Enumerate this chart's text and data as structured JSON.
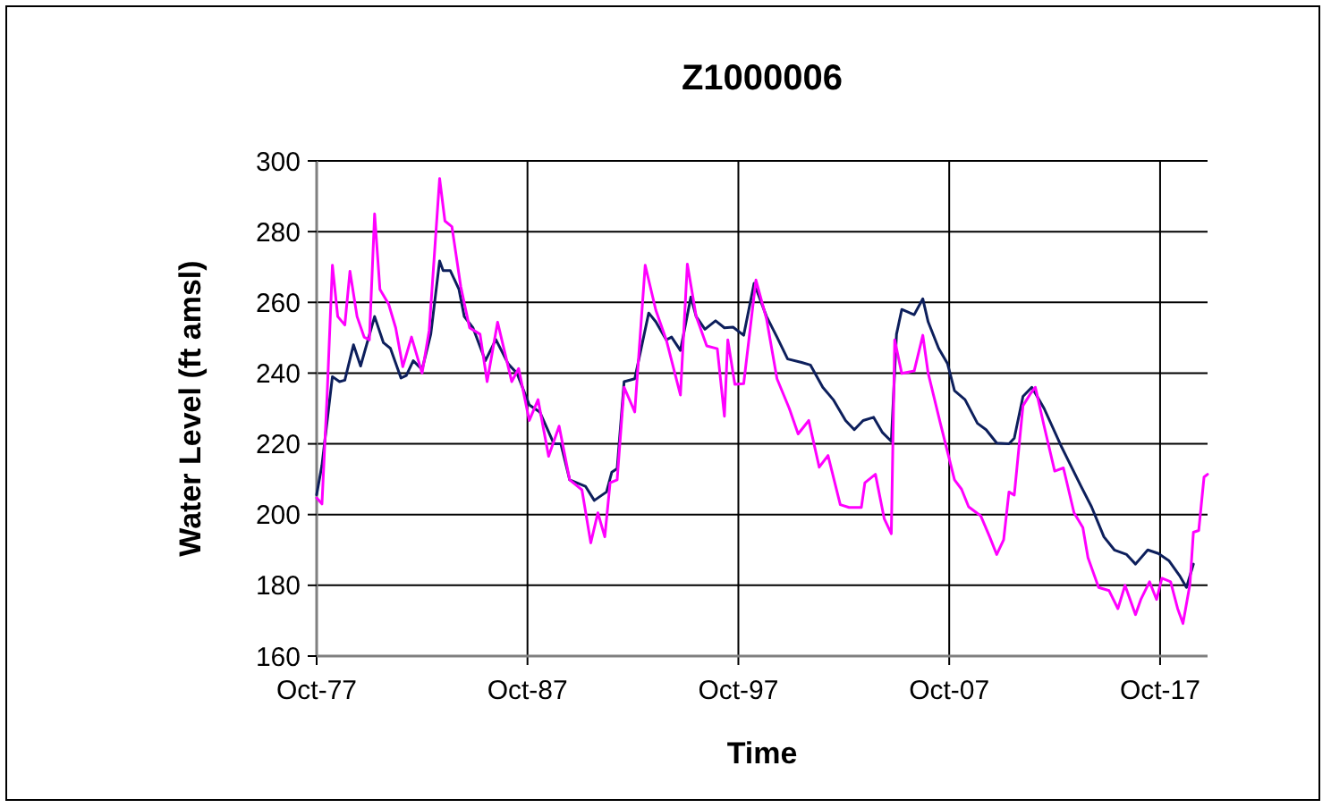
{
  "chart_data": {
    "type": "line",
    "title": "Z1000006",
    "xlabel": "Time",
    "ylabel": "Water Level (ft amsl)",
    "xlim": [
      "1977-10",
      "2020-01"
    ],
    "xticks": [
      {
        "value": "1977-10",
        "label": "Oct-77"
      },
      {
        "value": "1987-10",
        "label": "Oct-87"
      },
      {
        "value": "1997-10",
        "label": "Oct-97"
      },
      {
        "value": "2007-10",
        "label": "Oct-07"
      },
      {
        "value": "2017-10",
        "label": "Oct-17"
      }
    ],
    "ylim": [
      160,
      300
    ],
    "yticks": [
      160,
      180,
      200,
      220,
      240,
      260,
      280,
      300
    ],
    "grid": true,
    "marker": "none",
    "line_style": "solid",
    "series": [
      {
        "color": "#0d1f5c",
        "x": [
          "1977-10",
          "1978-01",
          "1978-07",
          "1978-11",
          "1979-02",
          "1979-07",
          "1979-11",
          "1980-07",
          "1980-12",
          "1981-04",
          "1981-10",
          "1982-01",
          "1982-05",
          "1982-10",
          "1983-03",
          "1983-08",
          "1983-10",
          "1984-02",
          "1984-07",
          "1984-10",
          "1985-03",
          "1985-10",
          "1986-04",
          "1986-11",
          "1987-04",
          "1987-11",
          "1988-05",
          "1989-01",
          "1989-05",
          "1989-10",
          "1990-07",
          "1990-12",
          "1991-07",
          "1991-10",
          "1992-01",
          "1992-05",
          "1992-11",
          "1993-07",
          "1993-11",
          "1994-05",
          "1994-08",
          "1995-01",
          "1995-07",
          "1995-10",
          "1996-03",
          "1996-09",
          "1997-02",
          "1997-07",
          "1998-01",
          "1998-07",
          "1999-02",
          "1999-08",
          "2000-02",
          "2000-10",
          "2001-03",
          "2001-10",
          "2002-04",
          "2002-11",
          "2003-04",
          "2003-09",
          "2004-03",
          "2004-08",
          "2005-01",
          "2005-04",
          "2005-07",
          "2006-02",
          "2006-07",
          "2006-10",
          "2007-04",
          "2007-09",
          "2008-01",
          "2008-07",
          "2009-02",
          "2009-07",
          "2010-01",
          "2010-08",
          "2010-11",
          "2011-04",
          "2011-09",
          "2012-04",
          "2013-02",
          "2014-01",
          "2014-07",
          "2015-02",
          "2015-08",
          "2016-03",
          "2016-08",
          "2017-03",
          "2017-09",
          "2018-03",
          "2018-09",
          "2019-01",
          "2019-05"
        ],
        "values": [
          205.6,
          214,
          239,
          237.6,
          238,
          248,
          242,
          256,
          248.6,
          247,
          238.6,
          239.3,
          243.5,
          241,
          251,
          271.7,
          269,
          269,
          263.7,
          256,
          252.8,
          243.5,
          249.5,
          242.6,
          240,
          231,
          229,
          220,
          220,
          209.8,
          208,
          204,
          206.4,
          212,
          213,
          237.6,
          238.4,
          257,
          254.5,
          249.4,
          250.2,
          246.4,
          261.5,
          256,
          252.4,
          254.8,
          252.8,
          253,
          250.7,
          265.4,
          256,
          250.2,
          244,
          243,
          242.3,
          236,
          232.5,
          226.6,
          224,
          226.6,
          227.5,
          223.2,
          220.7,
          251,
          258,
          256.5,
          261,
          254.5,
          247,
          242.7,
          235,
          232.5,
          225.8,
          224,
          220.2,
          220,
          221.6,
          233.4,
          236,
          230,
          219,
          208,
          202.2,
          193.7,
          190,
          188.7,
          186,
          190,
          189,
          187,
          182.8,
          179.4,
          186
        ]
      },
      {
        "color": "#ff00ff",
        "x": [
          "1977-10",
          "1978-01",
          "1978-04",
          "1978-07",
          "1978-10",
          "1979-02",
          "1979-05",
          "1979-09",
          "1980-01",
          "1980-04",
          "1980-07",
          "1980-10",
          "1981-03",
          "1981-07",
          "1981-11",
          "1982-04",
          "1982-10",
          "1983-02",
          "1983-08",
          "1983-11",
          "1984-03",
          "1984-08",
          "1985-01",
          "1985-07",
          "1985-11",
          "1986-05",
          "1987-01",
          "1987-05",
          "1987-11",
          "1988-04",
          "1988-10",
          "1989-04",
          "1989-10",
          "1990-05",
          "1990-10",
          "1991-02",
          "1991-06",
          "1991-09",
          "1992-01",
          "1992-05",
          "1992-11",
          "1993-05",
          "1993-11",
          "1994-05",
          "1995-01",
          "1995-05",
          "1995-10",
          "1996-04",
          "1996-10",
          "1997-02",
          "1997-04",
          "1997-08",
          "1998-01",
          "1998-08",
          "1999-02",
          "1999-08",
          "2000-03",
          "2000-08",
          "2001-02",
          "2001-08",
          "2002-01",
          "2002-08",
          "2003-01",
          "2003-08",
          "2003-10",
          "2004-04",
          "2004-09",
          "2005-01",
          "2005-03",
          "2005-07",
          "2006-02",
          "2006-07",
          "2006-10",
          "2007-05",
          "2008-01",
          "2008-05",
          "2008-09",
          "2009-04",
          "2009-09",
          "2010-01",
          "2010-05",
          "2010-08",
          "2010-11",
          "2011-04",
          "2011-08",
          "2011-11",
          "2012-04",
          "2012-10",
          "2013-03",
          "2013-09",
          "2014-02",
          "2014-05",
          "2014-11",
          "2015-05",
          "2015-10",
          "2016-02",
          "2016-08",
          "2016-11",
          "2017-04",
          "2017-08",
          "2017-11",
          "2018-04",
          "2018-08",
          "2018-11",
          "2019-03",
          "2019-05",
          "2019-08",
          "2019-11",
          "2020-01"
        ],
        "values": [
          204.7,
          203,
          234,
          270.5,
          256,
          253.6,
          268.8,
          256,
          250.2,
          249.4,
          285,
          263.7,
          259.5,
          252.8,
          241.8,
          250.2,
          240,
          252,
          295,
          283,
          281.4,
          264.5,
          252.8,
          251,
          237.6,
          254.4,
          237.6,
          241.3,
          226.6,
          232.5,
          216.5,
          225,
          209.8,
          207,
          192,
          200.5,
          193.7,
          209,
          209.8,
          236,
          229,
          270.5,
          257.8,
          249.4,
          233.8,
          270.8,
          256,
          247.7,
          246.9,
          227.8,
          249.4,
          236.8,
          237,
          266.3,
          255.3,
          238.4,
          230,
          222.8,
          226.6,
          213.4,
          216.7,
          202.8,
          202,
          202,
          209,
          211.4,
          198.8,
          194.6,
          249.4,
          239.9,
          240.6,
          250.7,
          240,
          225.8,
          209.8,
          207.2,
          202.2,
          199.6,
          193.7,
          188.7,
          192.9,
          206.4,
          205.5,
          230.8,
          234,
          236,
          225,
          212.3,
          213.2,
          200.5,
          196.3,
          187.8,
          179.4,
          178.5,
          173.4,
          180,
          171.7,
          176,
          181,
          176,
          182,
          181,
          173.4,
          169.2,
          180.2,
          195,
          195.5,
          210.6,
          211.4
        ]
      }
    ]
  }
}
